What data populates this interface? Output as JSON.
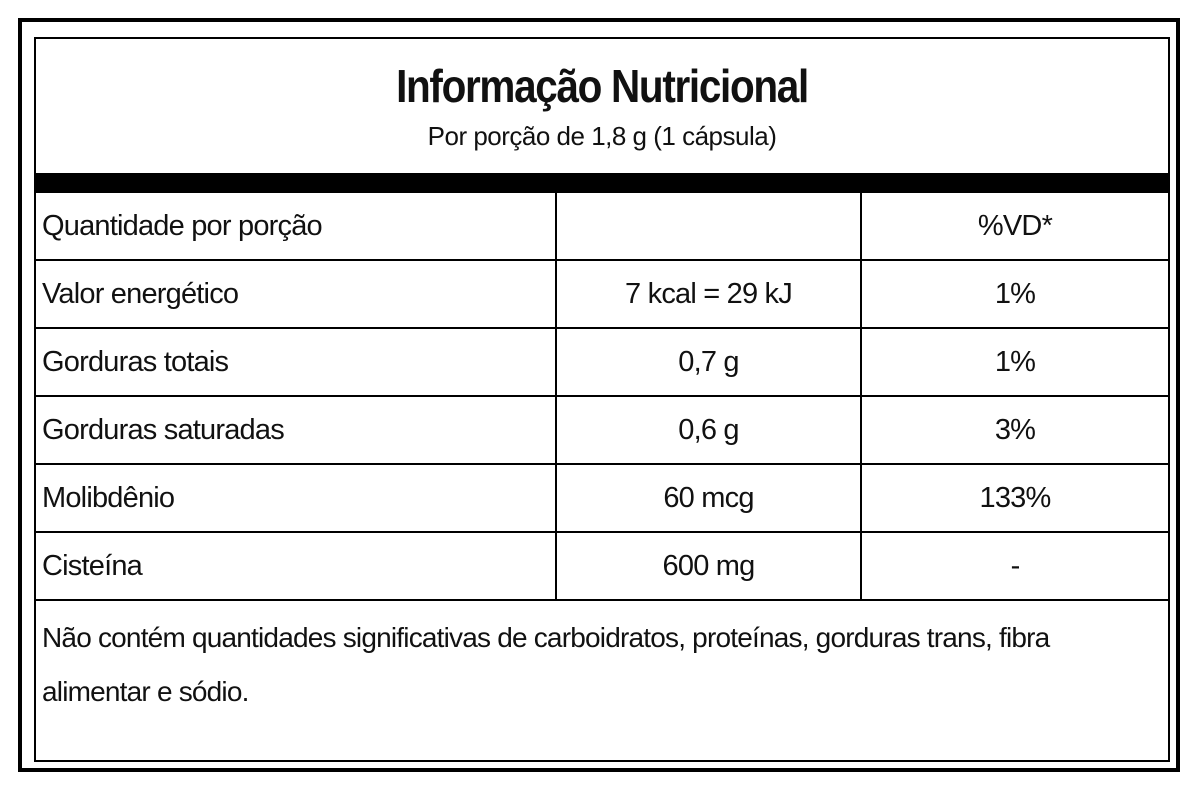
{
  "header": {
    "title": "Informação Nutricional",
    "subtitle": "Por porção de 1,8 g (1 cápsula)"
  },
  "table": {
    "column_headers": {
      "first": "Quantidade por porção",
      "last": "%VD*"
    },
    "rows": [
      [
        "Valor energético",
        "7 kcal = 29 kJ",
        "1%"
      ],
      [
        "Gorduras totais",
        "0,7 g",
        "1%"
      ],
      [
        "Gorduras saturadas",
        "0,6 g",
        "3%"
      ],
      [
        "Molibdênio",
        "60 mcg",
        "133%"
      ],
      [
        "Cisteína",
        "600 mg",
        "-"
      ]
    ]
  },
  "footer": "Não contém quantidades significativas de carboidratos, proteínas, gorduras trans, fibra alimentar e sódio."
}
